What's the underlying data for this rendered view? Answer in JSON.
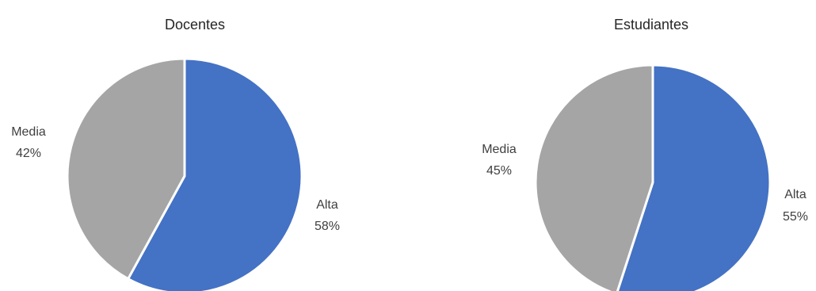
{
  "chart_data": [
    {
      "type": "pie",
      "title": "Docentes",
      "slices": [
        {
          "label": "Alta",
          "value": 58,
          "value_label": "58%",
          "color": "#4472C4"
        },
        {
          "label": "Media",
          "value": 42,
          "value_label": "42%",
          "color": "#A5A5A5"
        }
      ],
      "start_angle": "12 o'clock",
      "direction": "clockwise",
      "label_position": "outside"
    },
    {
      "type": "pie",
      "title": "Estudiantes",
      "slices": [
        {
          "label": "Alta",
          "value": 55,
          "value_label": "55%",
          "color": "#4472C4"
        },
        {
          "label": "Media",
          "value": 45,
          "value_label": "45%",
          "color": "#A5A5A5"
        }
      ],
      "start_angle": "12 o'clock",
      "direction": "clockwise",
      "label_position": "outside"
    }
  ]
}
